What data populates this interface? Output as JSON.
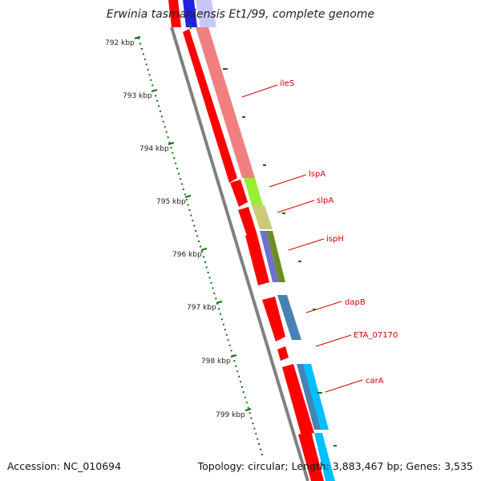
{
  "title": "Erwinia tasmaniensis Et1/99, complete genome",
  "footer": {
    "accession": "Accession: NC_010694",
    "summary": "Topology: circular; Length: 3,883,467 bp; Genes: 3,535"
  },
  "ticks": [
    {
      "label": "792 kbp"
    },
    {
      "label": "793 kbp"
    },
    {
      "label": "794 kbp"
    },
    {
      "label": "795 kbp"
    },
    {
      "label": "796 kbp"
    },
    {
      "label": "797 kbp"
    },
    {
      "label": "798 kbp"
    },
    {
      "label": "799 kbp"
    }
  ],
  "genes": [
    {
      "label": "ileS",
      "color": "#f08080"
    },
    {
      "label": "lspA",
      "color": "#99ee33"
    },
    {
      "label": "slpA",
      "color": "#cccc77"
    },
    {
      "label": "ispH",
      "color": "#6b8e23"
    },
    {
      "label": "dapB",
      "color": "#4682b4"
    },
    {
      "label": "ETA_07170",
      "color": "#4682b4"
    },
    {
      "label": "carA",
      "color": "#00bfff"
    }
  ],
  "colors": {
    "cds": "#ff0000",
    "backbone": "#808080",
    "tick": "#107010",
    "label_line": "#d40000"
  }
}
